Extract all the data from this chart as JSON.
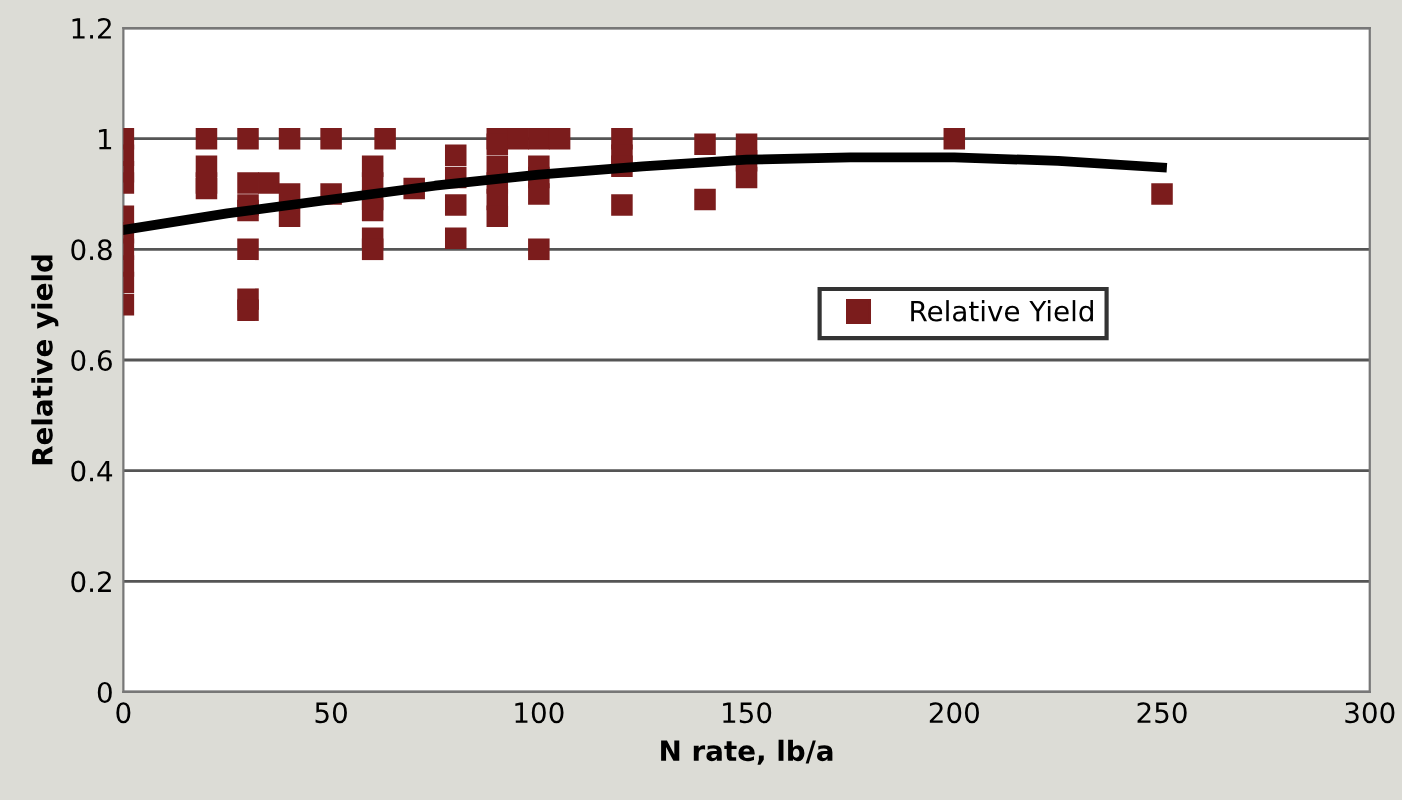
{
  "chart_data": {
    "type": "scatter",
    "xlabel": "N rate, lb/a",
    "ylabel": "Relative yield",
    "xlim": [
      0,
      300
    ],
    "xticks": [
      0,
      50,
      100,
      150,
      200,
      250,
      300
    ],
    "ylim": [
      0,
      1.2
    ],
    "yticks": [
      0,
      0.2,
      0.4,
      0.6,
      0.8,
      1,
      1.2
    ],
    "grid": "y",
    "legend": "right",
    "marker": "square",
    "series": [
      {
        "name": "Relative Yield",
        "color": "#7b1c1c",
        "x": [
          0,
          0,
          0,
          0,
          0,
          0,
          0,
          0,
          0,
          0,
          20,
          20,
          20,
          20,
          30,
          30,
          30,
          30,
          30,
          30,
          30,
          35,
          40,
          40,
          40,
          50,
          50,
          60,
          60,
          60,
          60,
          60,
          60,
          63,
          70,
          80,
          80,
          80,
          80,
          90,
          90,
          90,
          90,
          90,
          90,
          95,
          100,
          100,
          100,
          100,
          100,
          105,
          120,
          120,
          120,
          120,
          140,
          140,
          150,
          150,
          150,
          200,
          250
        ],
        "values": [
          1.0,
          0.97,
          0.94,
          0.92,
          0.86,
          0.83,
          0.8,
          0.77,
          0.74,
          0.7,
          1.0,
          0.95,
          0.92,
          0.91,
          1.0,
          0.92,
          0.88,
          0.87,
          0.8,
          0.71,
          0.69,
          0.92,
          1.0,
          0.9,
          0.86,
          1.0,
          0.9,
          0.95,
          0.92,
          0.89,
          0.87,
          0.82,
          0.8,
          1.0,
          0.91,
          0.97,
          0.93,
          0.88,
          0.82,
          1.0,
          0.99,
          0.95,
          0.92,
          0.89,
          0.86,
          1.0,
          1.0,
          0.95,
          0.93,
          0.9,
          0.8,
          1.0,
          1.0,
          0.97,
          0.95,
          0.88,
          0.99,
          0.89,
          0.99,
          0.96,
          0.93,
          1.0,
          0.9
        ]
      },
      {
        "type": "line",
        "color": "#000000",
        "marker": "none",
        "x": [
          0,
          25,
          50,
          75,
          100,
          125,
          150,
          175,
          200,
          225,
          250
        ],
        "values": [
          0.835,
          0.865,
          0.89,
          0.915,
          0.935,
          0.95,
          0.962,
          0.966,
          0.966,
          0.96,
          0.948
        ]
      }
    ]
  }
}
